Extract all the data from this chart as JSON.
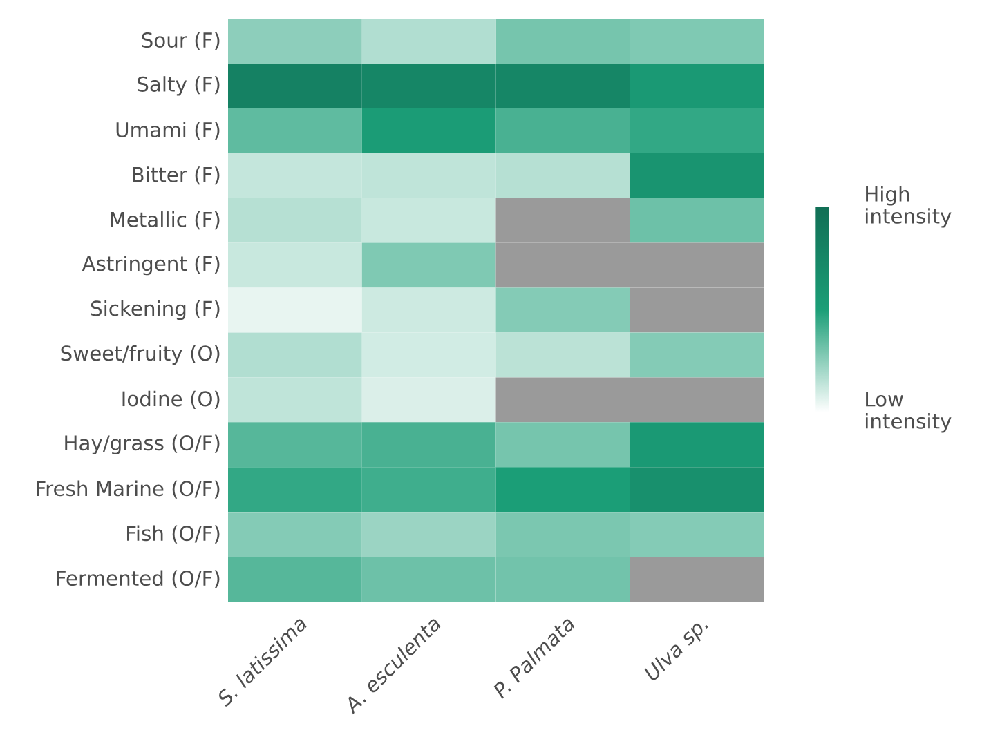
{
  "chart_data": {
    "type": "heatmap",
    "categories": [
      "*S. latissima*",
      "*A. esculenta*",
      "*P. Palmata*",
      "*Ulva sp.*"
    ],
    "y_categories": [
      "Sour (F)",
      "Salty (F)",
      "Umami (F)",
      "Bitter (F)",
      "Metallic (F)",
      "Astringent (F)",
      "Sickening (F)",
      "Sweet/fruity (O)",
      "Iodine (O)",
      "Hay/grass (O/F)",
      "Fresh Marine (O/F)",
      "Fish (O/F)",
      "Fermented (O/F)"
    ],
    "cells": [
      [
        0.25,
        0.17,
        0.3,
        0.28
      ],
      [
        0.8,
        0.75,
        0.75,
        0.55
      ],
      [
        0.35,
        0.52,
        0.4,
        0.45
      ],
      [
        0.13,
        0.14,
        0.16,
        0.6
      ],
      [
        0.16,
        0.12,
        null,
        0.32
      ],
      [
        0.12,
        0.28,
        null,
        null
      ],
      [
        0.05,
        0.11,
        0.27,
        null
      ],
      [
        0.17,
        0.1,
        0.15,
        0.27
      ],
      [
        0.14,
        0.08,
        null,
        null
      ],
      [
        0.37,
        0.4,
        0.3,
        0.55
      ],
      [
        0.45,
        0.42,
        0.5,
        0.65
      ],
      [
        0.27,
        0.22,
        0.29,
        0.27
      ],
      [
        0.37,
        0.32,
        0.31,
        null
      ]
    ],
    "clim": [
      0,
      1
    ],
    "cticks": [
      {
        "value": 0,
        "label": "Low intensity"
      },
      {
        "value": 1,
        "label": "High intensity"
      }
    ]
  }
}
